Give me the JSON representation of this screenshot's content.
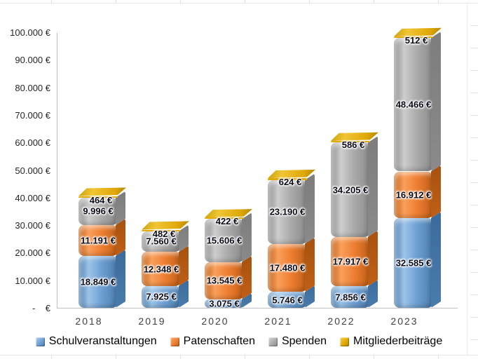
{
  "chart_data": {
    "type": "bar",
    "stacked": true,
    "style": "3d-rounded-cylinder",
    "title": "",
    "xlabel": "",
    "ylabel": "",
    "grid": false,
    "categories": [
      "2018",
      "2019",
      "2020",
      "2021",
      "2022",
      "2023"
    ],
    "series": [
      {
        "name": "Schulveranstaltungen",
        "color": "#6fa0d4",
        "light": "#9dc4e8",
        "dark": "#4a7cab",
        "side": "#3a6b9c",
        "values": [
          18849,
          7925,
          3075,
          5746,
          7856,
          32585
        ],
        "labels": [
          "18.849 €",
          "7.925 €",
          "3.075 €",
          "5.746 €",
          "7.856 €",
          "32.585 €"
        ]
      },
      {
        "name": "Patenschaften",
        "color": "#ee7f33",
        "light": "#f9a05c",
        "dark": "#c05f16",
        "side": "#a6520f",
        "values": [
          11191,
          12348,
          13545,
          17480,
          17917,
          16912
        ],
        "labels": [
          "11.191 €",
          "12.348 €",
          "13.545 €",
          "17.480 €",
          "17.917 €",
          "16.912 €"
        ]
      },
      {
        "name": "Spenden",
        "color": "#ababab",
        "light": "#cdcdcd",
        "dark": "#8a8a8a",
        "side": "#7d7d7d",
        "values": [
          9996,
          7560,
          15606,
          23190,
          34205,
          48466
        ],
        "labels": [
          "9.996 €",
          "7.560 €",
          "15.606 €",
          "23.190 €",
          "34.205 €",
          "48.466 €"
        ]
      },
      {
        "name": "Mitgliederbeiträge",
        "color": "#e2a907",
        "light": "#f4c838",
        "dark": "#b68a00",
        "side": "#94700a",
        "values": [
          464,
          482,
          422,
          624,
          586,
          512
        ],
        "labels": [
          "464 €",
          "482 €",
          "422 €",
          "624 €",
          "586 €",
          "512 €"
        ]
      }
    ],
    "y_axis": {
      "min": 0,
      "max": 100000,
      "step": 10000,
      "tick_labels": [
        "-    €",
        "10.000 €",
        "20.000 €",
        "30.000 €",
        "40.000 €",
        "50.000 €",
        "60.000 €",
        "70.000 €",
        "80.000 €",
        "90.000 €",
        "100.000 €"
      ]
    },
    "legend": {
      "position": "bottom",
      "items": [
        "Schulveranstaltungen",
        "Patenschaften",
        "Spenden",
        "Mitgliederbeiträge"
      ]
    }
  },
  "colors": {
    "axis_line": "#bfbfbf",
    "tick_text": "#262626",
    "category_text": "#3f3f3f",
    "value_label_text": "#0c0c18",
    "background": "#ffffff"
  }
}
